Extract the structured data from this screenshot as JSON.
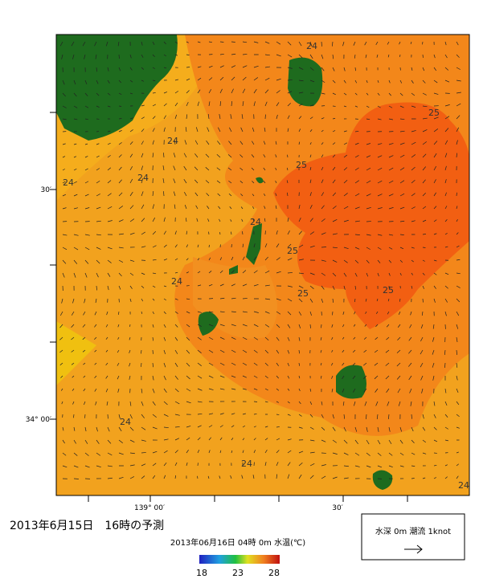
{
  "map": {
    "lat_labels": [
      "30′",
      "34° 00′"
    ],
    "lon_labels": [
      "139° 00′",
      "30′"
    ],
    "contour_labels": [
      "24",
      "25",
      "24",
      "24",
      "24",
      "25",
      "24",
      "25",
      "24",
      "25",
      "25",
      "24",
      "24",
      "24"
    ]
  },
  "caption": "2013年6月15日　16時の予測",
  "colorbar": {
    "title": "2013年06月16日 04時 0m 水温(℃)",
    "ticks": [
      18,
      23,
      28
    ]
  },
  "legend": {
    "text": "水深 0m 潮流 1knot"
  }
}
